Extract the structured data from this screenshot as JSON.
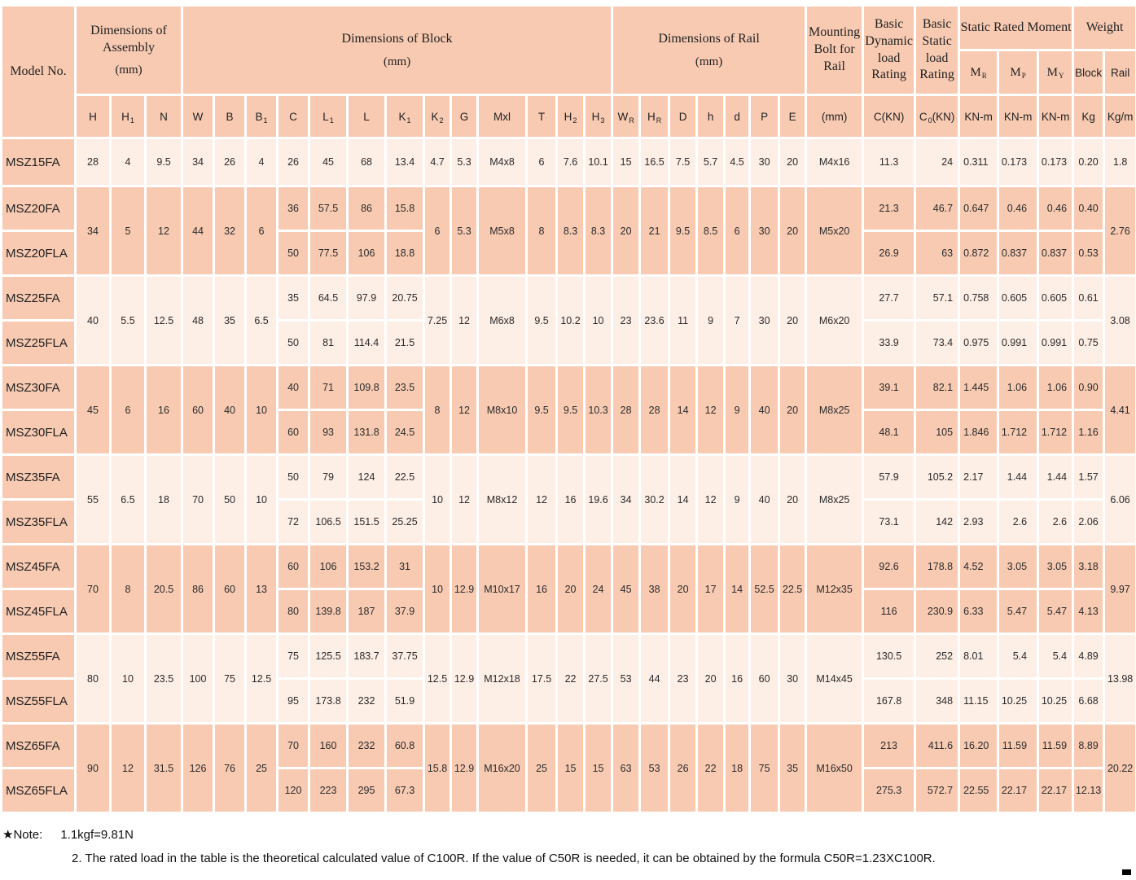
{
  "colors": {
    "header_cell": "#f8cab2",
    "row_dark": "#f8cab2",
    "row_light": "#fdeee6",
    "grid": "#ffffff",
    "text": "#222222"
  },
  "table": {
    "header": {
      "row1": [
        {
          "title": "Model No.",
          "rowspan": 3,
          "colspan": 1
        },
        {
          "title": "Dimensions of Assembly",
          "unit": "(mm)",
          "rowspan": 2,
          "colspan": 3
        },
        {
          "title": "Dimensions of Block",
          "unit": "(mm)",
          "rowspan": 2,
          "colspan": 13
        },
        {
          "title": "Dimensions of Rail",
          "unit": "(mm)",
          "rowspan": 2,
          "colspan": 7
        },
        {
          "title": "Mounting Bolt for Rail",
          "rowspan": 2,
          "colspan": 1
        },
        {
          "title": "Basic Dynamic load Rating",
          "rowspan": 2,
          "colspan": 1
        },
        {
          "title": "Basic Static load Rating",
          "rowspan": 2,
          "colspan": 1
        },
        {
          "title": "Static Rated Moment",
          "rowspan": 1,
          "colspan": 3
        },
        {
          "title": "Weight",
          "rowspan": 1,
          "colspan": 2
        }
      ],
      "row2": [
        {
          "pre": "M",
          "sub": "R",
          "serif": true
        },
        {
          "pre": "M",
          "sub": "P",
          "serif": true
        },
        {
          "pre": "M",
          "sub": "Y",
          "serif": true
        },
        {
          "pre": "Block"
        },
        {
          "pre": "Rail"
        }
      ],
      "row3": [
        {
          "pre": "H"
        },
        {
          "pre": "H",
          "sub": "1"
        },
        {
          "pre": "N"
        },
        {
          "pre": "W"
        },
        {
          "pre": "B"
        },
        {
          "pre": "B",
          "sub": "1"
        },
        {
          "pre": "C"
        },
        {
          "pre": "L",
          "sub": "1"
        },
        {
          "pre": "L"
        },
        {
          "pre": "K",
          "sub": "1"
        },
        {
          "pre": "K",
          "sub": "2"
        },
        {
          "pre": "G"
        },
        {
          "pre": "Mxl"
        },
        {
          "pre": "T"
        },
        {
          "pre": "H",
          "sub": "2"
        },
        {
          "pre": "H",
          "sub": "3"
        },
        {
          "pre": "W",
          "sub": "R"
        },
        {
          "pre": "H",
          "sub": "R"
        },
        {
          "pre": "D"
        },
        {
          "pre": "h"
        },
        {
          "pre": "d"
        },
        {
          "pre": "P"
        },
        {
          "pre": "E"
        },
        {
          "pre": "(mm)"
        },
        {
          "pre": "C(KN)"
        },
        {
          "pre": "C",
          "sub": "0",
          "post": "(KN)"
        },
        {
          "pre": "KN-m"
        },
        {
          "pre": "KN-m"
        },
        {
          "pre": "KN-m"
        },
        {
          "pre": "Kg"
        },
        {
          "pre": "Kg/m"
        }
      ]
    },
    "groups": [
      {
        "shade": "light",
        "shared": {
          "assembly": [
            "28",
            "4",
            "9.5"
          ],
          "block_wbb": [
            "34",
            "26",
            "4"
          ],
          "block_mid": [
            "4.7",
            "5.3",
            "M4x8",
            "6",
            "7.6",
            "10.1"
          ],
          "rail": [
            "15",
            "16.5",
            "7.5",
            "5.7",
            "4.5",
            "30",
            "20"
          ],
          "bolt": "M4x16",
          "rail_weight": "1.8"
        },
        "rows": [
          {
            "model": "MSZ15FA",
            "block": [
              "26",
              "45",
              "68",
              "13.4"
            ],
            "ratings": [
              "11.3",
              "24",
              "0.311",
              "0.173",
              "0.173",
              "0.20"
            ]
          }
        ]
      },
      {
        "shade": "dark",
        "shared": {
          "assembly": [
            "34",
            "5",
            "12"
          ],
          "block_wbb": [
            "44",
            "32",
            "6"
          ],
          "block_mid": [
            "6",
            "5.3",
            "M5x8",
            "8",
            "8.3",
            "8.3"
          ],
          "rail": [
            "20",
            "21",
            "9.5",
            "8.5",
            "6",
            "30",
            "20"
          ],
          "bolt": "M5x20",
          "rail_weight": "2.76"
        },
        "rows": [
          {
            "model": "MSZ20FA",
            "block": [
              "36",
              "57.5",
              "86",
              "15.8"
            ],
            "ratings": [
              "21.3",
              "46.7",
              "0.647",
              "0.46",
              "0.46",
              "0.40"
            ]
          },
          {
            "model": "MSZ20FLA",
            "block": [
              "50",
              "77.5",
              "106",
              "18.8"
            ],
            "ratings": [
              "26.9",
              "63",
              "0.872",
              "0.837",
              "0.837",
              "0.53"
            ]
          }
        ]
      },
      {
        "shade": "light",
        "shared": {
          "assembly": [
            "40",
            "5.5",
            "12.5"
          ],
          "block_wbb": [
            "48",
            "35",
            "6.5"
          ],
          "block_mid": [
            "7.25",
            "12",
            "M6x8",
            "9.5",
            "10.2",
            "10"
          ],
          "rail": [
            "23",
            "23.6",
            "11",
            "9",
            "7",
            "30",
            "20"
          ],
          "bolt": "M6x20",
          "rail_weight": "3.08"
        },
        "rows": [
          {
            "model": "MSZ25FA",
            "block": [
              "35",
              "64.5",
              "97.9",
              "20.75"
            ],
            "ratings": [
              "27.7",
              "57.1",
              "0.758",
              "0.605",
              "0.605",
              "0.61"
            ]
          },
          {
            "model": "MSZ25FLA",
            "block": [
              "50",
              "81",
              "114.4",
              "21.5"
            ],
            "ratings": [
              "33.9",
              "73.4",
              "0.975",
              "0.991",
              "0.991",
              "0.75"
            ]
          }
        ]
      },
      {
        "shade": "dark",
        "shared": {
          "assembly": [
            "45",
            "6",
            "16"
          ],
          "block_wbb": [
            "60",
            "40",
            "10"
          ],
          "block_mid": [
            "8",
            "12",
            "M8x10",
            "9.5",
            "9.5",
            "10.3"
          ],
          "rail": [
            "28",
            "28",
            "14",
            "12",
            "9",
            "40",
            "20"
          ],
          "bolt": "M8x25",
          "rail_weight": "4.41"
        },
        "rows": [
          {
            "model": "MSZ30FA",
            "block": [
              "40",
              "71",
              "109.8",
              "23.5"
            ],
            "ratings": [
              "39.1",
              "82.1",
              "1.445",
              "1.06",
              "1.06",
              "0.90"
            ]
          },
          {
            "model": "MSZ30FLA",
            "block": [
              "60",
              "93",
              "131.8",
              "24.5"
            ],
            "ratings": [
              "48.1",
              "105",
              "1.846",
              "1.712",
              "1.712",
              "1.16"
            ]
          }
        ]
      },
      {
        "shade": "light",
        "shared": {
          "assembly": [
            "55",
            "6.5",
            "18"
          ],
          "block_wbb": [
            "70",
            "50",
            "10"
          ],
          "block_mid": [
            "10",
            "12",
            "M8x12",
            "12",
            "16",
            "19.6"
          ],
          "rail": [
            "34",
            "30.2",
            "14",
            "12",
            "9",
            "40",
            "20"
          ],
          "bolt": "M8x25",
          "rail_weight": "6.06"
        },
        "rows": [
          {
            "model": "MSZ35FA",
            "block": [
              "50",
              "79",
              "124",
              "22.5"
            ],
            "ratings": [
              "57.9",
              "105.2",
              "2.17",
              "1.44",
              "1.44",
              "1.57"
            ]
          },
          {
            "model": "MSZ35FLA",
            "block": [
              "72",
              "106.5",
              "151.5",
              "25.25"
            ],
            "ratings": [
              "73.1",
              "142",
              "2.93",
              "2.6",
              "2.6",
              "2.06"
            ]
          }
        ]
      },
      {
        "shade": "dark",
        "shared": {
          "assembly": [
            "70",
            "8",
            "20.5"
          ],
          "block_wbb": [
            "86",
            "60",
            "13"
          ],
          "block_mid": [
            "10",
            "12.9",
            "M10x17",
            "16",
            "20",
            "24"
          ],
          "rail": [
            "45",
            "38",
            "20",
            "17",
            "14",
            "52.5",
            "22.5"
          ],
          "bolt": "M12x35",
          "rail_weight": "9.97"
        },
        "rows": [
          {
            "model": "MSZ45FA",
            "block": [
              "60",
              "106",
              "153.2",
              "31"
            ],
            "ratings": [
              "92.6",
              "178.8",
              "4.52",
              "3.05",
              "3.05",
              "3.18"
            ]
          },
          {
            "model": "MSZ45FLA",
            "block": [
              "80",
              "139.8",
              "187",
              "37.9"
            ],
            "ratings": [
              "116",
              "230.9",
              "6.33",
              "5.47",
              "5.47",
              "4.13"
            ]
          }
        ]
      },
      {
        "shade": "light",
        "shared": {
          "assembly": [
            "80",
            "10",
            "23.5"
          ],
          "block_wbb": [
            "100",
            "75",
            "12.5"
          ],
          "block_mid": [
            "12.5",
            "12.9",
            "M12x18",
            "17.5",
            "22",
            "27.5"
          ],
          "rail": [
            "53",
            "44",
            "23",
            "20",
            "16",
            "60",
            "30"
          ],
          "bolt": "M14x45",
          "rail_weight": "13.98"
        },
        "rows": [
          {
            "model": "MSZ55FA",
            "block": [
              "75",
              "125.5",
              "183.7",
              "37.75"
            ],
            "ratings": [
              "130.5",
              "252",
              "8.01",
              "5.4",
              "5.4",
              "4.89"
            ]
          },
          {
            "model": "MSZ55FLA",
            "block": [
              "95",
              "173.8",
              "232",
              "51.9"
            ],
            "ratings": [
              "167.8",
              "348",
              "11.15",
              "10.25",
              "10.25",
              "6.68"
            ]
          }
        ]
      },
      {
        "shade": "dark",
        "shared": {
          "assembly": [
            "90",
            "12",
            "31.5"
          ],
          "block_wbb": [
            "126",
            "76",
            "25"
          ],
          "block_mid": [
            "15.8",
            "12.9",
            "M16x20",
            "25",
            "15",
            "15"
          ],
          "rail": [
            "63",
            "53",
            "26",
            "22",
            "18",
            "75",
            "35"
          ],
          "bolt": "M16x50",
          "rail_weight": "20.22"
        },
        "rows": [
          {
            "model": "MSZ65FA",
            "block": [
              "70",
              "160",
              "232",
              "60.8"
            ],
            "ratings": [
              "213",
              "411.6",
              "16.20",
              "11.59",
              "11.59",
              "8.89"
            ]
          },
          {
            "model": "MSZ65FLA",
            "block": [
              "120",
              "223",
              "295",
              "67.3"
            ],
            "ratings": [
              "275.3",
              "572.7",
              "22.55",
              "22.17",
              "22.17",
              "12.13"
            ]
          }
        ]
      }
    ]
  },
  "notes": {
    "star": "★",
    "label": "Note:",
    "n1": "1.1kgf=9.81N",
    "n2": "2. The rated load in the table is the theoretical calculated value of C100R. If the value of C50R is needed, it can be obtained by the formula C50R=1.23XC100R."
  }
}
